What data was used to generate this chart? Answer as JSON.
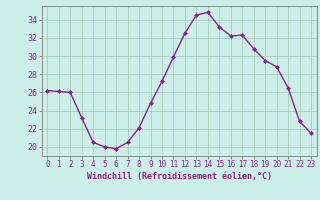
{
  "x": [
    0,
    1,
    2,
    3,
    4,
    5,
    6,
    7,
    8,
    9,
    10,
    11,
    12,
    13,
    14,
    15,
    16,
    17,
    18,
    19,
    20,
    21,
    22,
    23
  ],
  "y": [
    26.2,
    26.1,
    26.0,
    23.2,
    20.5,
    20.0,
    19.8,
    20.5,
    22.1,
    24.8,
    27.2,
    29.9,
    32.5,
    34.5,
    34.8,
    33.2,
    32.2,
    32.3,
    30.8,
    29.5,
    28.8,
    26.5,
    22.8,
    21.5
  ],
  "line_color": "#882288",
  "marker": "D",
  "marker_size": 2.0,
  "bg_color": "#cceee8",
  "grid_color": "#aaccbb",
  "xlabel": "Windchill (Refroidissement éolien,°C)",
  "xlabel_color": "#882288",
  "tick_color": "#882288",
  "spine_color": "#888888",
  "ylim": [
    19.0,
    35.5
  ],
  "xlim": [
    -0.5,
    23.5
  ],
  "yticks": [
    20,
    22,
    24,
    26,
    28,
    30,
    32,
    34
  ],
  "xticks": [
    0,
    1,
    2,
    3,
    4,
    5,
    6,
    7,
    8,
    9,
    10,
    11,
    12,
    13,
    14,
    15,
    16,
    17,
    18,
    19,
    20,
    21,
    22,
    23
  ],
  "xlabel_fontsize": 6.0,
  "tick_fontsize": 5.5,
  "ytick_fontsize": 6.0
}
